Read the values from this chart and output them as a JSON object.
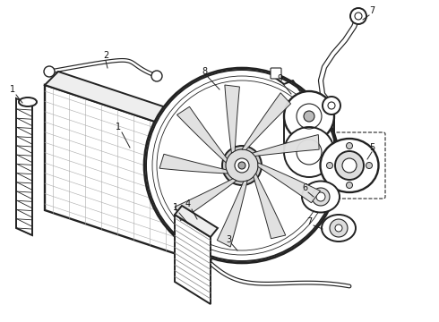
{
  "bg_color": "#ffffff",
  "line_color": "#222222",
  "figsize": [
    4.9,
    3.6
  ],
  "dpi": 100,
  "lw_main": 1.4,
  "lw_thin": 0.7,
  "lw_hose": 3.5,
  "lw_hose_inner": 1.8
}
